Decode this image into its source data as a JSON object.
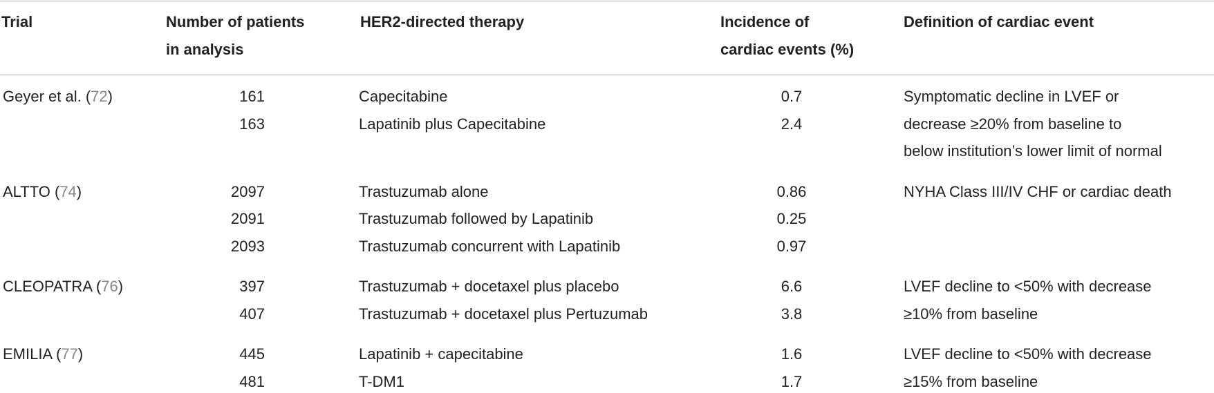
{
  "table": {
    "header": [
      [
        "Trial"
      ],
      [
        "Number of patients",
        "in analysis"
      ],
      [
        "HER2-directed therapy"
      ],
      [
        "Incidence of",
        "cardiac events (%)"
      ],
      [
        "Definition of cardiac event"
      ]
    ],
    "groups": [
      {
        "trial": [
          "Geyer et al. (",
          "72",
          ")"
        ],
        "rows": [
          [
            161,
            "Capecitabine",
            0.7
          ],
          [
            163,
            "Lapatinib plus Capecitabine",
            2.4
          ]
        ],
        "definition": [
          "Symptomatic decline in LVEF or",
          "decrease ≥20% from baseline to",
          "below institution’s lower limit of normal"
        ]
      },
      {
        "trial": [
          "ALTTO (",
          "74",
          ")"
        ],
        "rows": [
          [
            2097,
            "Trastuzumab alone",
            0.86
          ],
          [
            2091,
            "Trastuzumab followed by Lapatinib",
            0.25
          ],
          [
            2093,
            "Trastuzumab concurrent with Lapatinib",
            0.97
          ]
        ],
        "definition": [
          "NYHA Class III/IV CHF or cardiac death"
        ]
      },
      {
        "trial": [
          "CLEOPATRA (",
          "76",
          ")"
        ],
        "rows": [
          [
            397,
            "Trastuzumab + docetaxel plus placebo",
            6.6
          ],
          [
            407,
            "Trastuzumab + docetaxel plus Pertuzumab",
            3.8
          ]
        ],
        "definition": [
          "LVEF decline to <50% with decrease",
          "≥10% from baseline"
        ]
      },
      {
        "trial": [
          "EMILIA (",
          "77",
          ")"
        ],
        "rows": [
          [
            445,
            "Lapatinib + capecitabine",
            1.6
          ],
          [
            481,
            "T-DM1",
            1.7
          ]
        ],
        "definition": [
          "LVEF decline to <50% with decrease",
          "≥15% from baseline"
        ]
      }
    ]
  }
}
